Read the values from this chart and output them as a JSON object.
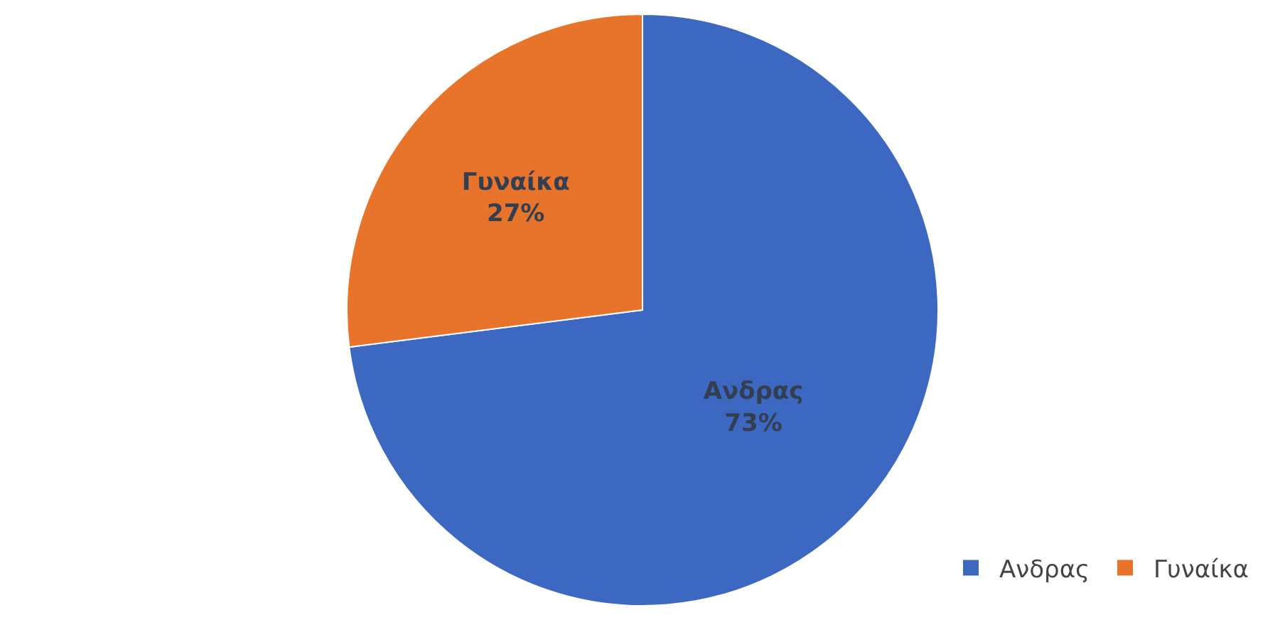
{
  "chart_data": {
    "type": "pie",
    "categories": [
      "Ανδρας",
      "Γυναίκα"
    ],
    "values": [
      73,
      27
    ],
    "colors": [
      "#3d68c2",
      "#e8732a"
    ],
    "value_labels": [
      "73%",
      "27%"
    ],
    "legend": "bottom right"
  }
}
